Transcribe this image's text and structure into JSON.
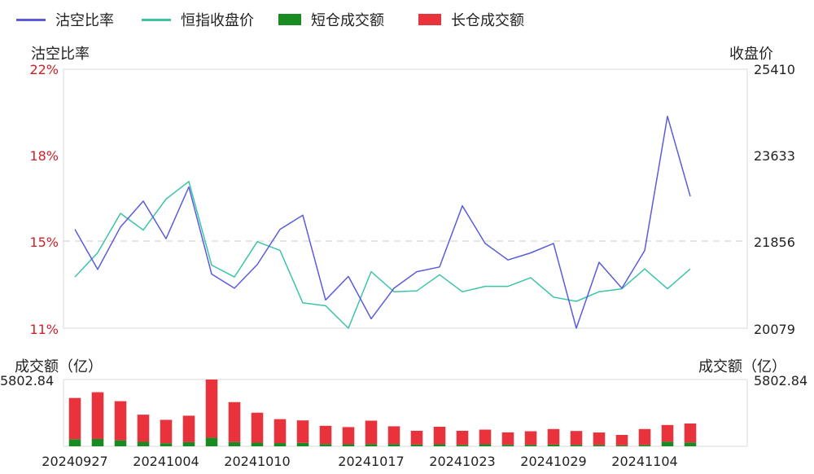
{
  "legend": [
    {
      "label": "沽空比率",
      "color": "#5b5bdc",
      "kind": "line"
    },
    {
      "label": "恒指收盘价",
      "color": "#3cc4a8",
      "kind": "line"
    },
    {
      "label": "短仓成交额",
      "color": "#1a8a22",
      "kind": "bar"
    },
    {
      "label": "长仓成交额",
      "color": "#e8323c",
      "kind": "bar"
    }
  ],
  "axes": {
    "left_title": "沽空比率",
    "right_title": "收盘价",
    "left_ticks": [
      "22%",
      "18%",
      "15%",
      "11%"
    ],
    "right_ticks": [
      "25410",
      "23633",
      "21856",
      "20079"
    ],
    "left_tick_color": "#d0202a",
    "bottom_left_title": "成交额（亿）",
    "bottom_right_title": "成交额（亿）",
    "bottom_left_max": "5802.84",
    "bottom_right_max": "5802.84"
  },
  "chart_data": [
    {
      "type": "line",
      "dates": [
        "20240927",
        "20240930",
        "20241002",
        "20241003",
        "20241004",
        "20241007",
        "20241008",
        "20241009",
        "20241010",
        "20241011",
        "20241014",
        "20241015",
        "20241016",
        "20241017",
        "20241018",
        "20241021",
        "20241022",
        "20241023",
        "20241024",
        "20241025",
        "20241028",
        "20241029",
        "20241030",
        "20241031",
        "20241101",
        "20241104",
        "20241105",
        "20241106",
        "20241107",
        "20241108"
      ],
      "x_tick_labels": [
        "20240927",
        "20241004",
        "20241010",
        "20241017",
        "20241023",
        "20241029",
        "20241104"
      ],
      "series": [
        {
          "name": "沽空比率",
          "axis": "left",
          "values": [
            15.2,
            13.5,
            15.3,
            16.4,
            14.8,
            17.0,
            13.3,
            12.7,
            13.7,
            15.2,
            15.8,
            12.2,
            13.2,
            11.4,
            12.7,
            13.4,
            13.6,
            16.2,
            14.6,
            13.9,
            14.2,
            14.6,
            11.0,
            13.8,
            12.7,
            14.3,
            20.0,
            16.6,
            null,
            null
          ]
        },
        {
          "name": "恒指收盘价",
          "axis": "right",
          "values": [
            21133,
            21633,
            22443,
            22100,
            22736,
            23100,
            21378,
            21133,
            21860,
            21682,
            20600,
            20541,
            20079,
            21244,
            20830,
            20846,
            21180,
            20830,
            20940,
            20940,
            21120,
            20720,
            20633,
            20830,
            20890,
            21300,
            20890,
            21300,
            null,
            null
          ]
        }
      ],
      "ylim_left": [
        11,
        22
      ],
      "ylim_right": [
        20079,
        25410
      ]
    },
    {
      "type": "bar",
      "series": [
        {
          "name": "短仓成交额",
          "values": [
            620,
            640,
            520,
            390,
            270,
            360,
            750,
            370,
            320,
            280,
            300,
            200,
            180,
            200,
            200,
            150,
            180,
            130,
            180,
            130,
            130,
            150,
            130,
            120,
            90,
            120,
            400,
            340,
            0,
            0
          ]
        },
        {
          "name": "长仓成交额",
          "values": [
            3580,
            4060,
            3400,
            2360,
            2030,
            2300,
            5050,
            3470,
            2600,
            2080,
            1950,
            1580,
            1490,
            2030,
            1540,
            1200,
            1520,
            1220,
            1270,
            1080,
            1180,
            1350,
            1200,
            1080,
            900,
            1380,
            1450,
            1640,
            0,
            0
          ]
        }
      ],
      "ylim": [
        0,
        5802.84
      ]
    }
  ]
}
